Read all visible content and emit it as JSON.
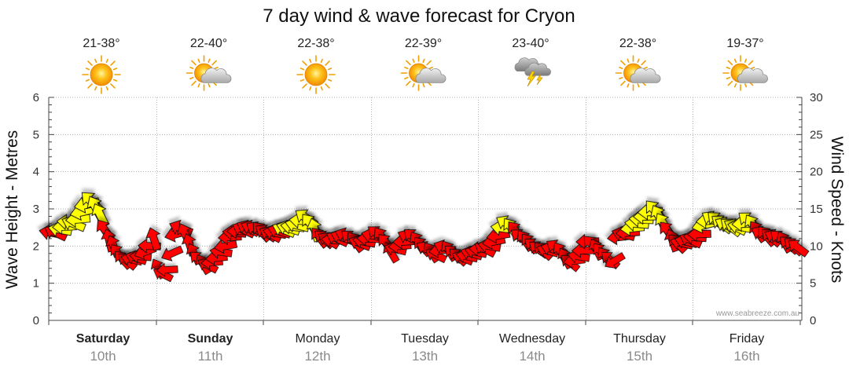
{
  "title": "7 day wind & wave forecast for Cryon",
  "watermark": "www.seabreeze.com.au",
  "ylabel_left": "Wave Height - Metres",
  "ylabel_right": "Wind Speed - Knots",
  "days": [
    {
      "name": "Saturday",
      "date": "10th",
      "bold": true,
      "temp": "21-38°",
      "icon": "sun-icon"
    },
    {
      "name": "Sunday",
      "date": "11th",
      "bold": true,
      "temp": "22-40°",
      "icon": "sun-cloud-icon"
    },
    {
      "name": "Monday",
      "date": "12th",
      "bold": false,
      "temp": "22-38°",
      "icon": "sun-icon"
    },
    {
      "name": "Tuesday",
      "date": "13th",
      "bold": false,
      "temp": "22-39°",
      "icon": "sun-cloud-icon"
    },
    {
      "name": "Wednesday",
      "date": "14th",
      "bold": false,
      "temp": "23-40°",
      "icon": "storm-cloud-icon"
    },
    {
      "name": "Thursday",
      "date": "15th",
      "bold": false,
      "temp": "22-38°",
      "icon": "sun-cloud-icon"
    },
    {
      "name": "Friday",
      "date": "16th",
      "bold": false,
      "temp": "19-37°",
      "icon": "sun-cloud-icon"
    }
  ],
  "colors": {
    "light_wind": "#ffff00",
    "strong_wind": "#ff0000",
    "grid": "#b0b0b0",
    "axis": "#444444"
  },
  "chart_data": {
    "type": "line",
    "title": "7 day wind & wave forecast for Cryon",
    "ylabel_left": "Wave Height - Metres",
    "ylabel_right": "Wind Speed - Knots",
    "ylim_left": [
      0,
      6
    ],
    "ylim_right": [
      0,
      30
    ],
    "yticks_left": [
      0,
      1,
      2,
      3,
      4,
      5,
      6
    ],
    "yticks_right": [
      0,
      5,
      10,
      15,
      20,
      25,
      30
    ],
    "categories": [
      "Saturday 10th",
      "Sunday 11th",
      "Monday 12th",
      "Tuesday 13th",
      "Wednesday 14th",
      "Thursday 15th",
      "Friday 16th"
    ],
    "grid": true,
    "series": [
      {
        "name": "wind",
        "points_per_day": 24,
        "knots": [
          [
            11.8,
            11.8,
            12.2,
            12.6,
            13.2,
            13.0,
            13.6,
            14.6,
            15.6,
            16.0,
            15.2,
            14.2,
            12.2,
            10.8,
            10.0,
            9.0,
            8.2,
            8.0,
            8.2,
            8.4,
            8.6,
            9.2,
            10.0,
            11.0
          ],
          [
            7.0,
            6.2,
            6.8,
            9.0,
            11.6,
            12.4,
            11.6,
            10.2,
            9.0,
            8.2,
            7.6,
            7.4,
            7.8,
            8.4,
            9.2,
            10.0,
            11.2,
            11.8,
            12.0,
            12.2,
            12.4,
            12.4,
            12.2,
            12.0
          ],
          [
            11.8,
            11.6,
            11.8,
            12.0,
            12.2,
            12.4,
            12.6,
            12.8,
            13.4,
            13.8,
            13.0,
            12.2,
            11.2,
            11.0,
            10.8,
            10.8,
            11.0,
            11.2,
            11.4,
            11.0,
            10.6,
            10.4,
            10.6,
            11.0
          ],
          [
            11.4,
            11.6,
            11.2,
            10.4,
            9.2,
            9.6,
            10.0,
            10.6,
            11.2,
            11.2,
            10.6,
            10.0,
            9.6,
            9.2,
            8.8,
            9.4,
            9.8,
            9.4,
            9.0,
            8.6,
            8.4,
            8.6,
            9.0,
            9.2
          ],
          [
            9.6,
            9.6,
            10.0,
            10.6,
            11.4,
            12.4,
            13.0,
            12.4,
            12.0,
            11.2,
            10.8,
            10.4,
            10.0,
            9.6,
            9.4,
            9.4,
            9.6,
            9.8,
            9.2,
            8.4,
            7.8,
            8.0,
            8.6,
            9.4
          ],
          [
            10.6,
            10.2,
            9.6,
            9.2,
            8.6,
            8.2,
            8.0,
            11.2,
            11.6,
            11.8,
            12.4,
            13.0,
            13.6,
            14.0,
            14.6,
            14.8,
            14.0,
            13.0,
            12.0,
            10.8,
            10.4,
            10.4,
            10.6,
            10.8
          ],
          [
            11.2,
            11.6,
            12.8,
            13.4,
            13.6,
            13.4,
            13.0,
            12.8,
            12.6,
            12.6,
            12.6,
            13.0,
            13.4,
            12.8,
            12.0,
            11.6,
            11.4,
            11.2,
            11.2,
            11.0,
            10.6,
            10.2,
            10.0,
            9.8
          ]
        ]
      }
    ]
  }
}
